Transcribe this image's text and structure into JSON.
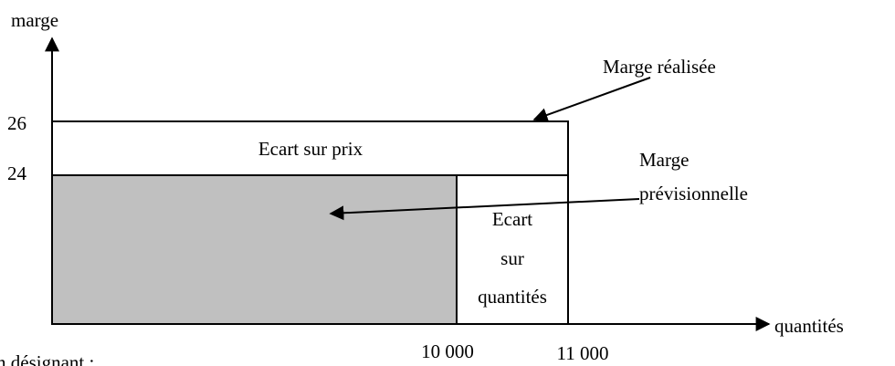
{
  "axes": {
    "y_label": "marge",
    "x_label": "quantités",
    "y_ticks": [
      "26",
      "24"
    ],
    "x_ticks": [
      "10 000",
      "11 000"
    ]
  },
  "regions": {
    "price_gap": "Ecart sur prix",
    "quantity_gap": [
      "Ecart",
      "sur",
      "quantités"
    ]
  },
  "annotations": {
    "actual_margin": "Marge réalisée",
    "forecast_margin": [
      "Marge",
      "prévisionnelle"
    ]
  },
  "footer": "n désignant :"
}
